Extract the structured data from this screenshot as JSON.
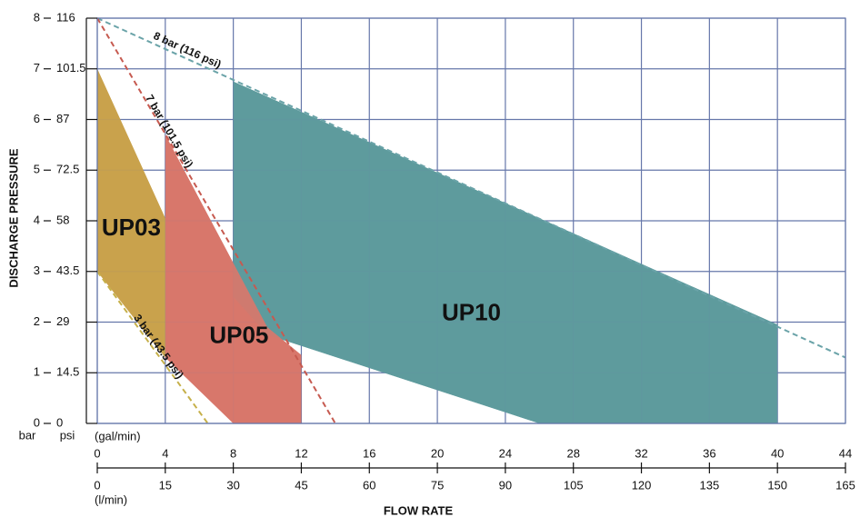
{
  "chart_data": {
    "type": "region",
    "ylabel": "DISCHARGE PRESSURE",
    "xlabel": "FLOW RATE",
    "y_unit": "bar",
    "y2_unit": "psi",
    "x_unit": "(gal/min)",
    "x2_unit": "(l/min)",
    "xlim": [
      0,
      44
    ],
    "xticks": [
      0,
      4,
      8,
      12,
      16,
      20,
      24,
      28,
      32,
      36,
      40,
      44
    ],
    "x2lim": [
      0,
      165
    ],
    "x2ticks": [
      0,
      15,
      30,
      45,
      60,
      75,
      90,
      105,
      120,
      135,
      150,
      165
    ],
    "ylim": [
      0,
      8
    ],
    "yticks": [
      0,
      1,
      2,
      3,
      4,
      5,
      6,
      7,
      8
    ],
    "y2lim": [
      0,
      116
    ],
    "y2ticks": [
      0,
      14.5,
      29,
      43.5,
      58,
      72.5,
      87,
      101.5,
      116
    ],
    "grid": true,
    "regions": [
      {
        "name": "UP10",
        "color": "#5e9b9d",
        "x": [
          8,
          40,
          40,
          26,
          10,
          8
        ],
        "y": [
          6.75,
          1.95,
          0,
          0,
          1.75,
          2.5
        ]
      },
      {
        "name": "UP05",
        "color": "#d8776b",
        "x": [
          4,
          10,
          12,
          12,
          8,
          4
        ],
        "y": [
          5.7,
          1.9,
          1.35,
          0,
          0,
          1.3
        ]
      },
      {
        "name": "UP03",
        "color": "#c9a24c",
        "x": [
          0,
          4,
          4,
          0
        ],
        "y": [
          7,
          4.05,
          1.3,
          3
        ]
      }
    ],
    "lines": [
      {
        "name": "8 bar (116 psi)",
        "color": "#6aa3a8",
        "x": [
          0,
          44
        ],
        "y": [
          8,
          1.3
        ]
      },
      {
        "name": "7 bar (101.5 psi)",
        "color": "#c65a50",
        "x": [
          0,
          14
        ],
        "y": [
          8,
          0
        ]
      },
      {
        "name": "3 bar (43.5 psi)",
        "color": "#c6b04a",
        "x": [
          0,
          6.5
        ],
        "y": [
          3,
          0
        ]
      }
    ]
  }
}
